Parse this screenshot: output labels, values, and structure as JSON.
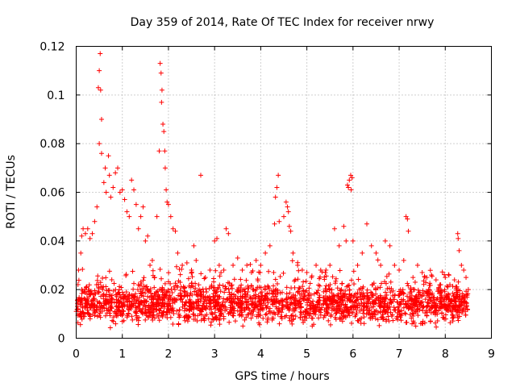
{
  "chart_data": {
    "type": "scatter",
    "title": "Day 359 of 2014, Rate Of TEC Index for receiver nrwy",
    "xlabel": "GPS time / hours",
    "ylabel": "ROTI / TECUs",
    "xlim": [
      0,
      9
    ],
    "ylim": [
      0,
      0.12
    ],
    "x_ticks": [
      0,
      1,
      2,
      3,
      4,
      5,
      6,
      7,
      8,
      9
    ],
    "x_tick_labels": [
      "0",
      "1",
      "2",
      "3",
      "4",
      "5",
      "6",
      "7",
      "8",
      "9"
    ],
    "y_ticks": [
      0,
      0.02,
      0.04,
      0.06,
      0.08,
      0.1,
      0.12
    ],
    "y_tick_labels": [
      "0",
      "0.02",
      "0.04",
      "0.06",
      "0.08",
      "0.1",
      "0.12"
    ],
    "grid": true,
    "marker": "+",
    "color": "#ff0000",
    "series": [
      {
        "name": "ROTI",
        "points": [
          [
            0.05,
            0.028
          ],
          [
            0.1,
            0.035
          ],
          [
            0.12,
            0.042
          ],
          [
            0.15,
            0.045
          ],
          [
            0.2,
            0.043
          ],
          [
            0.25,
            0.045
          ],
          [
            0.3,
            0.041
          ],
          [
            0.35,
            0.043
          ],
          [
            0.4,
            0.048
          ],
          [
            0.45,
            0.054
          ],
          [
            0.48,
            0.103
          ],
          [
            0.5,
            0.11
          ],
          [
            0.52,
            0.117
          ],
          [
            0.53,
            0.102
          ],
          [
            0.55,
            0.09
          ],
          [
            0.5,
            0.08
          ],
          [
            0.55,
            0.076
          ],
          [
            0.6,
            0.064
          ],
          [
            0.63,
            0.07
          ],
          [
            0.65,
            0.06
          ],
          [
            0.7,
            0.075
          ],
          [
            0.72,
            0.067
          ],
          [
            0.75,
            0.058
          ],
          [
            0.8,
            0.062
          ],
          [
            0.85,
            0.068
          ],
          [
            0.9,
            0.07
          ],
          [
            0.95,
            0.06
          ],
          [
            1.0,
            0.061
          ],
          [
            1.05,
            0.057
          ],
          [
            1.1,
            0.052
          ],
          [
            1.15,
            0.05
          ],
          [
            1.2,
            0.065
          ],
          [
            1.25,
            0.061
          ],
          [
            1.3,
            0.055
          ],
          [
            1.35,
            0.045
          ],
          [
            1.4,
            0.05
          ],
          [
            1.45,
            0.054
          ],
          [
            1.5,
            0.04
          ],
          [
            1.55,
            0.042
          ],
          [
            1.6,
            0.03
          ],
          [
            1.65,
            0.032
          ],
          [
            1.7,
            0.025
          ],
          [
            1.75,
            0.05
          ],
          [
            1.8,
            0.077
          ],
          [
            1.82,
            0.113
          ],
          [
            1.84,
            0.109
          ],
          [
            1.86,
            0.102
          ],
          [
            1.85,
            0.097
          ],
          [
            1.88,
            0.088
          ],
          [
            1.9,
            0.085
          ],
          [
            1.92,
            0.077
          ],
          [
            1.93,
            0.07
          ],
          [
            1.95,
            0.061
          ],
          [
            1.97,
            0.056
          ],
          [
            2.0,
            0.055
          ],
          [
            2.05,
            0.05
          ],
          [
            2.1,
            0.045
          ],
          [
            2.15,
            0.044
          ],
          [
            2.2,
            0.035
          ],
          [
            2.3,
            0.03
          ],
          [
            2.4,
            0.031
          ],
          [
            2.5,
            0.028
          ],
          [
            2.55,
            0.038
          ],
          [
            2.6,
            0.032
          ],
          [
            2.7,
            0.067
          ],
          [
            2.8,
            0.025
          ],
          [
            2.9,
            0.028
          ],
          [
            3.0,
            0.04
          ],
          [
            3.05,
            0.041
          ],
          [
            3.1,
            0.03
          ],
          [
            3.2,
            0.028
          ],
          [
            3.25,
            0.045
          ],
          [
            3.3,
            0.043
          ],
          [
            3.4,
            0.03
          ],
          [
            3.5,
            0.033
          ],
          [
            3.6,
            0.028
          ],
          [
            3.7,
            0.03
          ],
          [
            3.8,
            0.027
          ],
          [
            3.9,
            0.032
          ],
          [
            4.0,
            0.03
          ],
          [
            4.1,
            0.035
          ],
          [
            4.2,
            0.038
          ],
          [
            4.3,
            0.047
          ],
          [
            4.32,
            0.058
          ],
          [
            4.35,
            0.062
          ],
          [
            4.38,
            0.067
          ],
          [
            4.4,
            0.048
          ],
          [
            4.5,
            0.05
          ],
          [
            4.55,
            0.056
          ],
          [
            4.58,
            0.054
          ],
          [
            4.6,
            0.052
          ],
          [
            4.62,
            0.046
          ],
          [
            4.65,
            0.044
          ],
          [
            4.7,
            0.035
          ],
          [
            4.8,
            0.03
          ],
          [
            4.9,
            0.028
          ],
          [
            5.0,
            0.027
          ],
          [
            5.1,
            0.025
          ],
          [
            5.2,
            0.03
          ],
          [
            5.3,
            0.028
          ],
          [
            5.4,
            0.027
          ],
          [
            5.5,
            0.03
          ],
          [
            5.6,
            0.045
          ],
          [
            5.7,
            0.038
          ],
          [
            5.8,
            0.046
          ],
          [
            5.85,
            0.04
          ],
          [
            5.88,
            0.063
          ],
          [
            5.9,
            0.062
          ],
          [
            5.92,
            0.065
          ],
          [
            5.95,
            0.067
          ],
          [
            5.96,
            0.061
          ],
          [
            5.98,
            0.066
          ],
          [
            6.0,
            0.04
          ],
          [
            6.1,
            0.03
          ],
          [
            6.2,
            0.035
          ],
          [
            6.3,
            0.047
          ],
          [
            6.4,
            0.038
          ],
          [
            6.5,
            0.035
          ],
          [
            6.6,
            0.03
          ],
          [
            6.7,
            0.04
          ],
          [
            6.8,
            0.038
          ],
          [
            6.9,
            0.03
          ],
          [
            7.0,
            0.028
          ],
          [
            7.1,
            0.032
          ],
          [
            7.15,
            0.05
          ],
          [
            7.18,
            0.049
          ],
          [
            7.2,
            0.044
          ],
          [
            7.3,
            0.025
          ],
          [
            7.4,
            0.03
          ],
          [
            7.5,
            0.027
          ],
          [
            7.6,
            0.025
          ],
          [
            7.7,
            0.026
          ],
          [
            7.8,
            0.024
          ],
          [
            7.9,
            0.022
          ],
          [
            8.0,
            0.025
          ],
          [
            8.1,
            0.022
          ],
          [
            8.2,
            0.024
          ],
          [
            8.27,
            0.043
          ],
          [
            8.28,
            0.041
          ],
          [
            8.3,
            0.036
          ],
          [
            8.35,
            0.03
          ],
          [
            8.4,
            0.028
          ],
          [
            8.45,
            0.025
          ],
          [
            8.5,
            0.02
          ]
        ]
      }
    ],
    "dense_band": {
      "x_range": [
        0,
        8.5
      ],
      "center": 0.014,
      "spread": 0.007,
      "min": 0.004,
      "count": 2200
    }
  }
}
